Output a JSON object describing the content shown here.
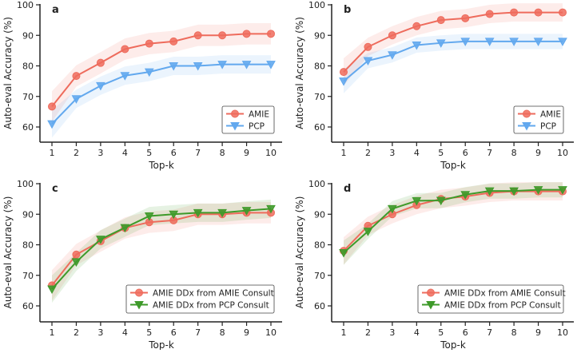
{
  "chart_data": [
    {
      "type": "line",
      "panel_label": "a",
      "xlabel": "Top-k",
      "ylabel": "Auto-eval Accuracy (%)",
      "x": [
        1,
        2,
        3,
        4,
        5,
        6,
        7,
        8,
        9,
        10
      ],
      "xticks": [
        "1",
        "2",
        "3",
        "4",
        "5",
        "6",
        "7",
        "8",
        "9",
        "10"
      ],
      "yticks": [
        "60",
        "70",
        "80",
        "90",
        "100"
      ],
      "ylim": [
        57,
        100
      ],
      "legend_position": "bottom-right",
      "series": [
        {
          "name": "AMIE",
          "marker": "circle",
          "color": "#EE6B5C",
          "values": [
            66.7,
            76.7,
            81.0,
            85.5,
            87.3,
            88.0,
            90.0,
            90.0,
            90.5,
            90.5
          ]
        },
        {
          "name": "PCP",
          "marker": "triangle-down",
          "color": "#62A8EE",
          "values": [
            61.0,
            69.2,
            73.5,
            76.8,
            78.0,
            80.0,
            80.0,
            80.5,
            80.5,
            80.5
          ]
        }
      ]
    },
    {
      "type": "line",
      "panel_label": "b",
      "xlabel": "Top-k",
      "ylabel": "Auto-eval Accuracy (%)",
      "x": [
        1,
        2,
        3,
        4,
        5,
        6,
        7,
        8,
        9,
        10
      ],
      "xticks": [
        "1",
        "2",
        "3",
        "4",
        "5",
        "6",
        "7",
        "8",
        "9",
        "10"
      ],
      "yticks": [
        "60",
        "70",
        "80",
        "90",
        "100"
      ],
      "ylim": [
        57,
        100
      ],
      "legend_position": "bottom-right",
      "series": [
        {
          "name": "AMIE",
          "marker": "circle",
          "color": "#EE6B5C",
          "values": [
            78.0,
            86.2,
            90.0,
            93.0,
            95.0,
            95.6,
            97.0,
            97.5,
            97.5,
            97.5
          ]
        },
        {
          "name": "PCP",
          "marker": "triangle-down",
          "color": "#62A8EE",
          "values": [
            75.0,
            81.7,
            83.6,
            86.8,
            87.5,
            88.0,
            88.0,
            88.0,
            88.0,
            88.0
          ]
        }
      ]
    },
    {
      "type": "line",
      "panel_label": "c",
      "xlabel": "Top-k",
      "ylabel": "Auto-eval Accuracy (%)",
      "x": [
        1,
        2,
        3,
        4,
        5,
        6,
        7,
        8,
        9,
        10
      ],
      "xticks": [
        "1",
        "2",
        "3",
        "4",
        "5",
        "6",
        "7",
        "8",
        "9",
        "10"
      ],
      "yticks": [
        "60",
        "70",
        "80",
        "90",
        "100"
      ],
      "ylim": [
        57,
        100
      ],
      "legend_position": "bottom-right",
      "series": [
        {
          "name": "AMIE DDx from AMIE Consult",
          "marker": "circle",
          "color": "#EE6B5C",
          "values": [
            66.7,
            76.8,
            81.2,
            85.5,
            87.4,
            88.0,
            90.0,
            90.0,
            90.5,
            90.5
          ]
        },
        {
          "name": "AMIE DDx from PCP Consult",
          "marker": "triangle-down",
          "color": "#3E9A2A",
          "values": [
            65.5,
            74.4,
            81.8,
            85.6,
            89.4,
            90.0,
            90.5,
            90.5,
            91.2,
            91.8
          ]
        }
      ]
    },
    {
      "type": "line",
      "panel_label": "d",
      "xlabel": "Top-k",
      "ylabel": "Auto-eval Accuracy (%)",
      "x": [
        1,
        2,
        3,
        4,
        5,
        6,
        7,
        8,
        9,
        10
      ],
      "xticks": [
        "1",
        "2",
        "3",
        "4",
        "5",
        "6",
        "7",
        "8",
        "9",
        "10"
      ],
      "yticks": [
        "60",
        "70",
        "80",
        "90",
        "100"
      ],
      "ylim": [
        57,
        100
      ],
      "legend_position": "bottom-right",
      "series": [
        {
          "name": "AMIE DDx from AMIE Consult",
          "marker": "circle",
          "color": "#EE6B5C",
          "values": [
            78.0,
            86.2,
            90.0,
            93.0,
            95.0,
            95.8,
            97.0,
            97.5,
            97.5,
            97.5
          ]
        },
        {
          "name": "AMIE DDx from PCP Consult",
          "marker": "triangle-down",
          "color": "#3E9A2A",
          "values": [
            77.4,
            84.4,
            91.8,
            94.4,
            94.5,
            96.4,
            97.6,
            97.6,
            98.0,
            98.0
          ]
        }
      ]
    }
  ]
}
